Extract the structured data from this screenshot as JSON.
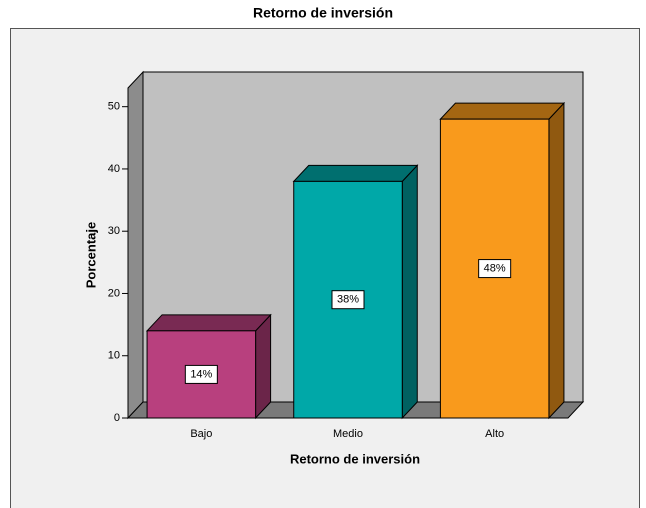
{
  "chart_data": {
    "type": "bar3d",
    "title": "Retorno de inversión",
    "x_label": "Retorno de inversión",
    "y_label": "Porcentaje",
    "categories": [
      "Bajo",
      "Medio",
      "Alto"
    ],
    "values": [
      14,
      38,
      48
    ],
    "value_labels": [
      "14%",
      "38%",
      "48%"
    ],
    "colors": [
      "#b8407e",
      "#00a8a8",
      "#f99a1c"
    ],
    "ylim": [
      0,
      53
    ],
    "yticks": [
      0,
      10,
      20,
      30,
      40,
      50
    ]
  }
}
